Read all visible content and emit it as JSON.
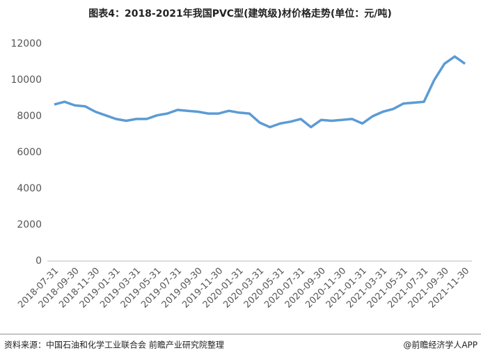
{
  "chart_data": {
    "type": "line",
    "title": "图表4：2018-2021年我国PVC型(建筑级)材价格走势(单位：元/吨)",
    "categories": [
      "2018-07-31",
      null,
      "2018-09-30",
      null,
      "2018-11-30",
      null,
      "2019-01-31",
      null,
      "2019-03-31",
      null,
      "2019-05-31",
      null,
      "2019-07-31",
      null,
      "2019-09-30",
      null,
      "2019-11-30",
      null,
      "2020-01-31",
      null,
      "2020-03-31",
      null,
      "2020-05-31",
      null,
      "2020-07-31",
      null,
      "2020-09-30",
      null,
      "2020-11-30",
      null,
      "2021-01-31",
      null,
      "2021-03-31",
      null,
      "2021-05-31",
      null,
      "2021-07-31",
      null,
      "2021-09-30",
      null,
      "2021-11-30"
    ],
    "series": [
      {
        "name": "PVC型(建筑级)材价格",
        "color": "#5b9bd5",
        "values": [
          8650,
          8800,
          8600,
          8550,
          8250,
          8050,
          7850,
          7750,
          7850,
          7850,
          8050,
          8150,
          8350,
          8300,
          8250,
          8150,
          8150,
          8300,
          8200,
          8150,
          7650,
          7400,
          7600,
          7700,
          7850,
          7400,
          7800,
          7750,
          7800,
          7850,
          7600,
          8000,
          8250,
          8400,
          8700,
          8750,
          8800,
          10000,
          10900,
          11300,
          10900
        ]
      }
    ],
    "ylim": [
      0,
      12000
    ],
    "yticks": [
      0,
      2000,
      4000,
      6000,
      8000,
      10000,
      12000
    ],
    "grid": false,
    "source": "资料来源：中国石油和化学工业联合会 前瞻产业研究院整理",
    "credit": "@前瞻经济学人APP"
  }
}
